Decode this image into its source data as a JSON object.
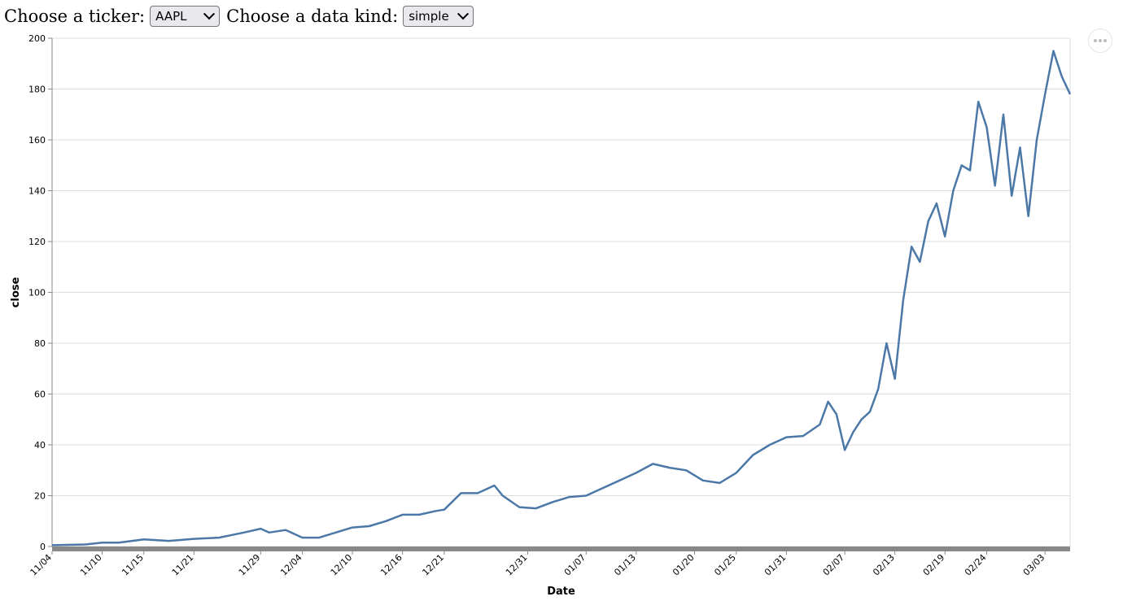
{
  "controls": {
    "ticker_label": "Choose a ticker:",
    "ticker_value": "AAPL",
    "kind_label": "Choose a data kind:",
    "kind_value": "simple"
  },
  "menu": {
    "icon": "ellipsis-icon"
  },
  "chart_data": {
    "type": "line",
    "xlabel": "Date",
    "ylabel": "close",
    "xlim": [
      "11/04",
      "03/06"
    ],
    "ylim": [
      0,
      200
    ],
    "yticks": [
      0,
      20,
      40,
      60,
      80,
      100,
      120,
      140,
      160,
      180,
      200
    ],
    "xtick_labels": [
      "11/04",
      "11/10",
      "11/15",
      "11/21",
      "11/29",
      "12/04",
      "12/10",
      "12/16",
      "12/21",
      "12/31",
      "01/07",
      "01/13",
      "01/20",
      "01/25",
      "01/31",
      "02/07",
      "02/13",
      "02/19",
      "02/24",
      "03/03"
    ],
    "grid": true,
    "line_color": "#4c78a8",
    "series": [
      {
        "x": [
          "11/04",
          "11/08",
          "11/10",
          "11/12",
          "11/15",
          "11/18",
          "11/21",
          "11/24",
          "11/27",
          "11/29",
          "11/30",
          "12/02",
          "12/04",
          "12/06",
          "12/08",
          "12/10",
          "12/12",
          "12/14",
          "12/16",
          "12/18",
          "12/20",
          "12/21",
          "12/23",
          "12/25",
          "12/27",
          "12/28",
          "12/30",
          "01/01",
          "01/03",
          "01/05",
          "01/07",
          "01/09",
          "01/11",
          "01/13",
          "01/15",
          "01/17",
          "01/19",
          "01/21",
          "01/23",
          "01/25",
          "01/27",
          "01/29",
          "01/31",
          "02/02",
          "02/04",
          "02/05",
          "02/06",
          "02/07",
          "02/08",
          "02/09",
          "02/10",
          "02/11",
          "02/12",
          "02/13",
          "02/14",
          "02/15",
          "02/16",
          "02/17",
          "02/18",
          "02/19",
          "02/20",
          "02/21",
          "02/22",
          "02/23",
          "02/24",
          "02/25",
          "02/26",
          "02/27",
          "02/28",
          "03/01",
          "03/02",
          "03/03",
          "03/04",
          "03/05",
          "03/06"
        ],
        "y": [
          0.5,
          0.8,
          1.5,
          1.5,
          2.8,
          2.2,
          3.0,
          3.5,
          5.5,
          7.0,
          5.5,
          6.5,
          3.5,
          3.5,
          5.5,
          7.5,
          8.0,
          10.0,
          12.5,
          12.5,
          14.0,
          14.5,
          21.0,
          21.0,
          24.0,
          20.0,
          15.5,
          15.0,
          17.5,
          19.5,
          20.0,
          23.0,
          26.0,
          29.0,
          32.5,
          31.0,
          30.0,
          26.0,
          25.0,
          29.0,
          36.0,
          40.0,
          43.0,
          43.5,
          48.0,
          57.0,
          52.0,
          38.0,
          45.0,
          50.0,
          53.0,
          62.0,
          80.0,
          66.0,
          97.0,
          118.0,
          112.0,
          128.0,
          135.0,
          122.0,
          140.0,
          150.0,
          148.0,
          175.0,
          165.0,
          142.0,
          170.0,
          138.0,
          157.0,
          130.0,
          160.0,
          178.0,
          195.0,
          185.0,
          178.0
        ]
      }
    ]
  }
}
